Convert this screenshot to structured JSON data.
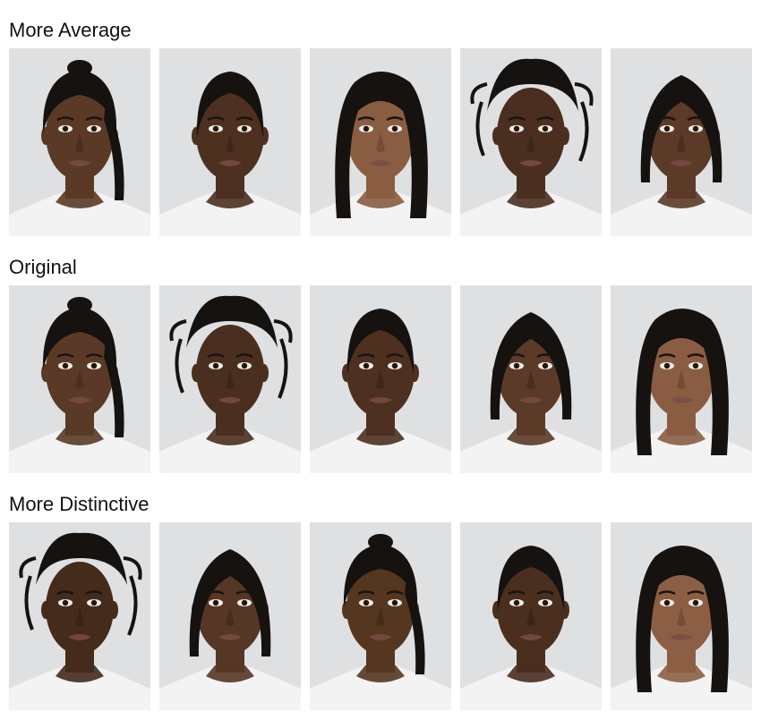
{
  "rows": [
    {
      "title": "More Average",
      "faces": [
        {
          "icon": "face-portrait-icon",
          "hair": "ponytail",
          "skin": "#5a3a26"
        },
        {
          "icon": "face-portrait-icon",
          "hair": "slicked",
          "skin": "#4d3020"
        },
        {
          "icon": "face-portrait-icon",
          "hair": "long",
          "skin": "#8a5d42"
        },
        {
          "icon": "face-portrait-icon",
          "hair": "braids-up",
          "skin": "#4a2f20"
        },
        {
          "icon": "face-portrait-icon",
          "hair": "bob",
          "skin": "#5b3a27"
        }
      ]
    },
    {
      "title": "Original",
      "faces": [
        {
          "icon": "face-portrait-icon",
          "hair": "ponytail",
          "skin": "#5a3a26"
        },
        {
          "icon": "face-portrait-icon",
          "hair": "braids-up",
          "skin": "#4a2f20"
        },
        {
          "icon": "face-portrait-icon",
          "hair": "slicked",
          "skin": "#4d3020"
        },
        {
          "icon": "face-portrait-icon",
          "hair": "bob",
          "skin": "#5b3a27"
        },
        {
          "icon": "face-portrait-icon",
          "hair": "long",
          "skin": "#8a5d42"
        }
      ]
    },
    {
      "title": "More Distinctive",
      "faces": [
        {
          "icon": "face-portrait-icon",
          "hair": "braids-up",
          "skin": "#452b1c"
        },
        {
          "icon": "face-portrait-icon",
          "hair": "bob",
          "skin": "#563624"
        },
        {
          "icon": "face-portrait-icon",
          "hair": "ponytail",
          "skin": "#55361f"
        },
        {
          "icon": "face-portrait-icon",
          "hair": "slicked",
          "skin": "#4a2e1e"
        },
        {
          "icon": "face-portrait-icon",
          "hair": "long",
          "skin": "#8c5f44"
        }
      ]
    }
  ]
}
